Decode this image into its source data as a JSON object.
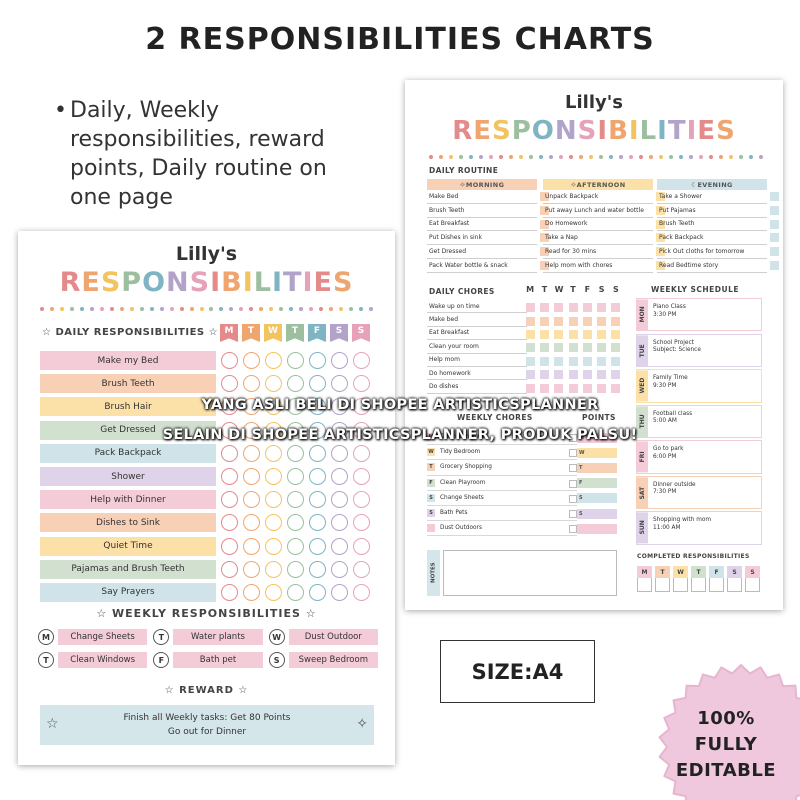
{
  "page": {
    "title": "2 RESPONSIBILITIES CHARTS",
    "bullet": "Daily, Weekly responsibilities, reward points, Daily routine on one page",
    "size_label": "SIZE:A4",
    "badge": [
      "100%",
      "FULLY",
      "EDITABLE"
    ],
    "watermark": [
      "YANG ASLI BELI DI SHOPEE ARTISTICSPLANNER",
      "SELAIN DI SHOPEE ARTISTICSPLANNER, PRODUK PALSU!"
    ]
  },
  "colors": {
    "rainbow": [
      "#e58a8a",
      "#efa56f",
      "#f3c35f",
      "#9cbf9f",
      "#7fb5c2",
      "#b3a2c9",
      "#e6a2b9"
    ],
    "pink": "#f3ccd8",
    "peach": "#f7d0b6",
    "yellow": "#fbe0a7",
    "sage": "#d2e0cf",
    "blue": "#cfe3e8",
    "lilac": "#ded3e8"
  },
  "sheet_a": {
    "owner": "Lilly's",
    "word": "RESPONSIBILITIES",
    "daily_title": "DAILY RESPONSIBILITIES",
    "days": [
      "M",
      "T",
      "W",
      "T",
      "F",
      "S",
      "S"
    ],
    "daily_items": [
      "Make my Bed",
      "Brush Teeth",
      "Brush Hair",
      "Get Dressed",
      "Pack Backpack",
      "Shower",
      "Help with Dinner",
      "Dishes to Sink",
      "Quiet Time",
      "Pajamas and Brush Teeth",
      "Say Prayers"
    ],
    "weekly_title": "WEEKLY RESPONSIBILITIES",
    "weekly_items": [
      {
        "letter": "M",
        "label": "Change Sheets"
      },
      {
        "letter": "T",
        "label": "Water plants"
      },
      {
        "letter": "W",
        "label": "Dust Outdoor"
      },
      {
        "letter": "T",
        "label": "Clean Windows"
      },
      {
        "letter": "F",
        "label": "Bath pet"
      },
      {
        "letter": "S",
        "label": "Sweep Bedroom"
      }
    ],
    "reward_title": "REWARD",
    "reward_lines": [
      "Finish all Weekly tasks: Get 80 Points",
      "Go out for Dinner"
    ]
  },
  "sheet_b": {
    "owner": "Lilly's",
    "word": "RESPONSIBILITIES",
    "routine_title": "DAILY ROUTINE",
    "routine": [
      {
        "head": "MORNING",
        "items": [
          "Make Bed",
          "Brush Teeth",
          "Eat Breakfast",
          "Put Dishes in sink",
          "Get Dressed",
          "Pack Water bottle & snack"
        ]
      },
      {
        "head": "AFTERNOON",
        "items": [
          "Unpack Backpack",
          "Put away Lunch and water bottle",
          "Do Homework",
          "Take a Nap",
          "Read for 30 mins",
          "Help mom with chores"
        ]
      },
      {
        "head": "EVENING",
        "items": [
          "Take a Shower",
          "Put Pajamas",
          "Brush Teeth",
          "Pack Backpack",
          "Pick Out cloths for tomorrow",
          "Read Bedtime story"
        ]
      }
    ],
    "chores_title": "DAILY CHORES",
    "chores_days": [
      "M",
      "T",
      "W",
      "T",
      "F",
      "S",
      "S"
    ],
    "chores": [
      "Wake up on time",
      "Make bed",
      "Eat Breakfast",
      "Clean your room",
      "Help mom",
      "Do homework",
      "Do dishes"
    ],
    "schedule_title": "WEEKLY SCHEDULE",
    "schedule": [
      {
        "day": "MON",
        "text": [
          "Piano Class",
          "3:30 PM"
        ]
      },
      {
        "day": "TUE",
        "text": [
          "School Project",
          "Subject: Science"
        ]
      },
      {
        "day": "WED",
        "text": [
          "Family Time",
          "9:30 PM"
        ]
      },
      {
        "day": "THU",
        "text": [
          "Football class",
          "5:00 AM"
        ]
      },
      {
        "day": "FRI",
        "text": [
          "Go to park",
          "6:00 PM"
        ]
      },
      {
        "day": "SAT",
        "text": [
          "Dinner outside",
          "7:30 PM"
        ]
      },
      {
        "day": "SUN",
        "text": [
          "Shopping with mom",
          "11:00 AM"
        ]
      }
    ],
    "weekly_chores_title": "WEEKLY CHORES",
    "points_title": "POINTS",
    "weekly_chores": [
      {
        "letter": "M",
        "label": "Clean Windows"
      },
      {
        "letter": "W",
        "label": "Tidy Bedroom"
      },
      {
        "letter": "T",
        "label": "Grocery Shopping"
      },
      {
        "letter": "F",
        "label": "Clean Playroom"
      },
      {
        "letter": "S",
        "label": "Change Sheets"
      },
      {
        "letter": "S",
        "label": "Bath Pets"
      },
      {
        "letter": "",
        "label": "Dust Outdoors"
      }
    ],
    "points_letters": [
      "M",
      "W",
      "T",
      "F",
      "S",
      "S",
      ""
    ],
    "notes_label": "NOTES",
    "completed_title": "COMPLETED RESPONSIBILITIES",
    "completed_days": [
      "M",
      "T",
      "W",
      "T",
      "F",
      "S",
      "S"
    ]
  }
}
